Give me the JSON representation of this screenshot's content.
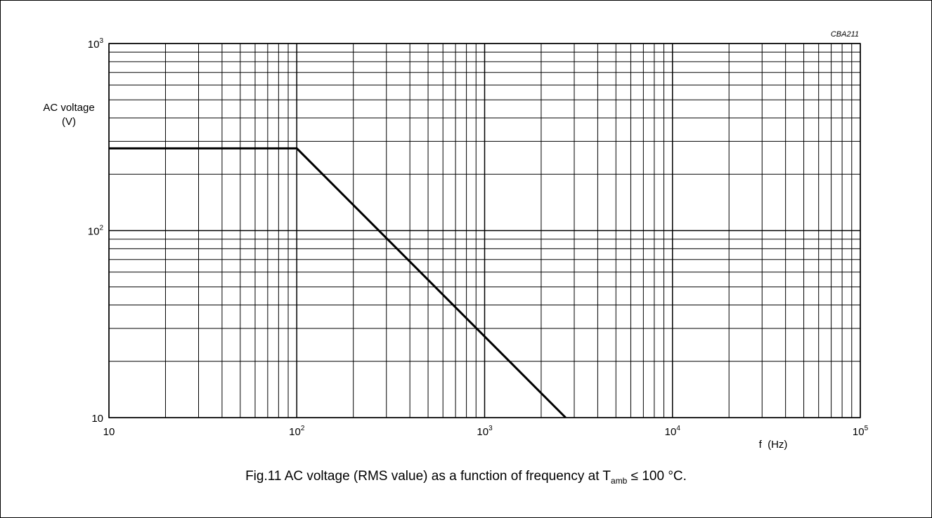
{
  "chart_data": {
    "type": "line",
    "code": "CBA211",
    "ylabel_line1": "AC voltage",
    "ylabel_line2": "(V)",
    "xlabel": "f  (Hz)",
    "x_scale": "log",
    "y_scale": "log",
    "xlim": [
      10,
      100000
    ],
    "ylim": [
      10,
      1000
    ],
    "grid": true,
    "x_ticks": [
      {
        "value": 10,
        "base": "10",
        "exp": ""
      },
      {
        "value": 100,
        "base": "10",
        "exp": "2"
      },
      {
        "value": 1000,
        "base": "10",
        "exp": "3"
      },
      {
        "value": 10000,
        "base": "10",
        "exp": "4"
      },
      {
        "value": 100000,
        "base": "10",
        "exp": "5"
      }
    ],
    "y_ticks": [
      {
        "value": 10,
        "base": "10",
        "exp": ""
      },
      {
        "value": 100,
        "base": "10",
        "exp": "2"
      },
      {
        "value": 1000,
        "base": "10",
        "exp": "3"
      }
    ],
    "series": [
      {
        "points": [
          {
            "x": 10,
            "y": 275
          },
          {
            "x": 100,
            "y": 275
          },
          {
            "x": 2700,
            "y": 10
          }
        ]
      }
    ]
  },
  "caption": {
    "prefix": "Fig.11  AC voltage (RMS value) as a function of frequency at T",
    "sub": "amb",
    "suffix": " ≤ 100 °C."
  }
}
